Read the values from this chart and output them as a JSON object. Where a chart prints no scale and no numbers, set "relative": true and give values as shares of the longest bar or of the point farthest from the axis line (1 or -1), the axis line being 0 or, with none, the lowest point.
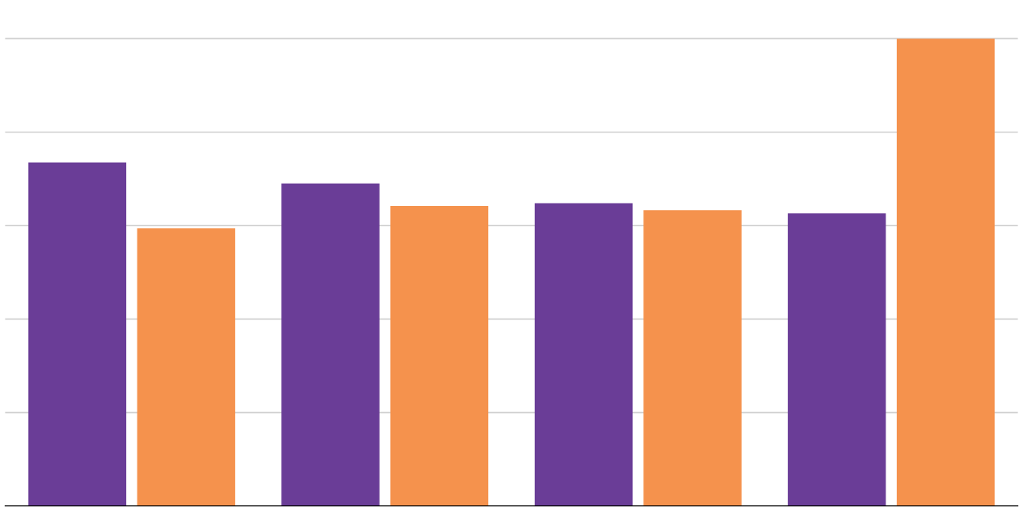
{
  "chart_data": {
    "type": "bar",
    "relative": true,
    "grid": "y",
    "categories": [
      null,
      null,
      null,
      null
    ],
    "series": [
      {
        "color": "#6a3d97",
        "values": [
          0.735,
          0.69,
          0.648,
          0.626
        ]
      },
      {
        "color": "#f5924d",
        "values": [
          0.594,
          0.642,
          0.633,
          1
        ]
      }
    ]
  }
}
